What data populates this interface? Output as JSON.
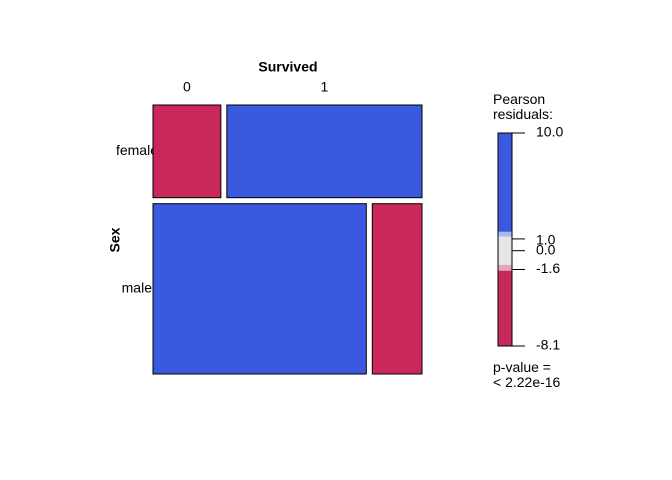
{
  "chart_data": {
    "type": "mosaic",
    "x_label": "Survived",
    "y_label": "Sex",
    "categories": [
      "female",
      "male"
    ],
    "series": [
      {
        "name": "0",
        "values": [
          81,
          468
        ],
        "colors": [
          "#c8285a",
          "#3b59de"
        ]
      },
      {
        "name": "1",
        "values": [
          233,
          109
        ],
        "colors": [
          "#3b59de",
          "#c8285a"
        ]
      }
    ],
    "legend": {
      "title": "Pearson residuals:",
      "ylim": [
        -8.1,
        10.0
      ],
      "yticks": [
        {
          "value": 10,
          "label": "10.0"
        },
        {
          "value": 1,
          "label": "1.0"
        },
        {
          "value": 0,
          "label": "0.0"
        },
        -1.6,
        -8.1
      ],
      "bands": [
        {
          "from": 10,
          "to": 1.6,
          "color": "#3b59de"
        },
        {
          "from": 1.6,
          "to": 1.2,
          "color": "#a9b8ef"
        },
        {
          "from": 1.2,
          "to": -1.2,
          "color": "#e6e6e6"
        },
        {
          "from": -1.2,
          "to": -1.7,
          "color": "#e8a6b6"
        },
        {
          "from": -1.7,
          "to": -8.1,
          "color": "#c8285a"
        }
      ]
    },
    "p_value_label": "p-value =",
    "p_value": "< 2.22e-16"
  }
}
